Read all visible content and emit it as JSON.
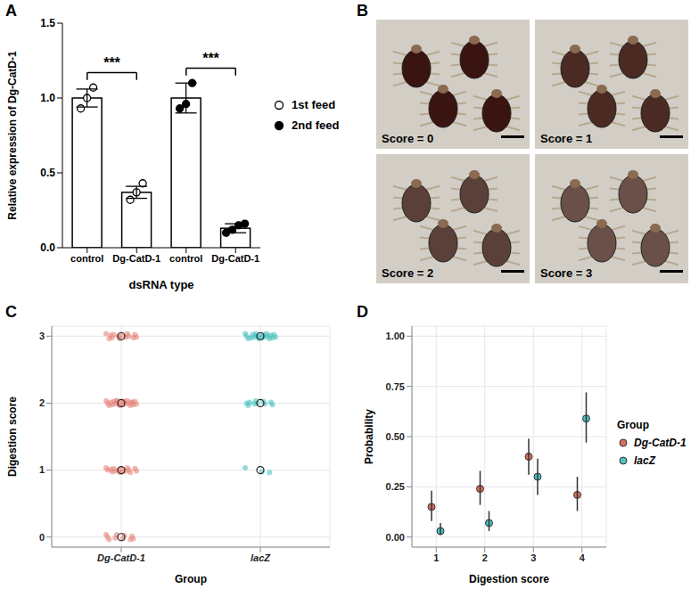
{
  "chart_data": [
    {
      "panel": "A",
      "type": "bar",
      "categories": [
        "control",
        "Dg-CatD-1",
        "control",
        "Dg-CatD-1"
      ],
      "series": [
        {
          "name": "1st feed",
          "marker": "hollow",
          "values": [
            1.0,
            0.37,
            null,
            null
          ],
          "errors": [
            0.06,
            0.04,
            null,
            null
          ],
          "points": [
            [
              0.93,
              1.0,
              1.07
            ],
            [
              0.32,
              0.37,
              0.43
            ],
            null,
            null
          ]
        },
        {
          "name": "2nd feed",
          "marker": "filled",
          "values": [
            null,
            null,
            1.0,
            0.13
          ],
          "errors": [
            null,
            null,
            0.1,
            0.03
          ],
          "points": [
            null,
            null,
            [
              0.93,
              0.96,
              1.1
            ],
            [
              0.1,
              0.12,
              0.15,
              0.16
            ]
          ]
        }
      ],
      "x_label": "dsRNA type",
      "y_label": "Relative expression of Dg-CatD-1",
      "ylim": [
        0,
        1.5
      ],
      "yticks": [
        {
          "value": 0,
          "label": "0.0"
        },
        0.5,
        {
          "value": 1,
          "label": "1.0"
        },
        1.5
      ],
      "significance": [
        {
          "between": [
            0,
            1
          ],
          "label": "***"
        },
        {
          "between": [
            2,
            3
          ],
          "label": "***"
        }
      ],
      "legend": "right"
    },
    {
      "panel": "B",
      "type": "image",
      "labels": [
        "Score = 0",
        "Score = 1",
        "Score = 2",
        "Score = 3"
      ]
    },
    {
      "panel": "C",
      "type": "scatter",
      "categories": [
        "Dg-CatD-1",
        "lacZ"
      ],
      "x_label": "Group",
      "y_label": "Digestion score",
      "ylim": [
        -0.15,
        3.15
      ],
      "yticks": [
        0,
        1,
        2,
        3
      ],
      "grid": true,
      "series": [
        {
          "color": "#E8877D",
          "scores": [
            0,
            1,
            2,
            3
          ],
          "counts": [
            10,
            16,
            24,
            14
          ]
        },
        {
          "color": "#4CC3C0",
          "scores": [
            0,
            1,
            2,
            3
          ],
          "counts": [
            0,
            3,
            10,
            20
          ]
        }
      ]
    },
    {
      "panel": "D",
      "type": "scatter",
      "categories": [
        1,
        2,
        3,
        4
      ],
      "x_label": "Digestion score",
      "y_label": "Probability",
      "ylim": [
        -0.05,
        1.05
      ],
      "yticks": [
        {
          "value": 0,
          "label": "0.00"
        },
        0.25,
        {
          "value": 0.5,
          "label": "0.50"
        },
        0.75,
        {
          "value": 1,
          "label": "1.00"
        }
      ],
      "grid": true,
      "legend": "right",
      "legend_title": "Group",
      "series": [
        {
          "name": "Dg-CatD-1",
          "color": "#D8705E",
          "values": [
            0.15,
            0.24,
            0.4,
            0.21
          ],
          "lower": [
            0.08,
            0.16,
            0.31,
            0.13
          ],
          "upper": [
            0.23,
            0.33,
            0.49,
            0.3
          ]
        },
        {
          "name": "lacZ",
          "color": "#4CC3C0",
          "values": [
            0.03,
            0.07,
            0.3,
            0.59
          ],
          "lower": [
            0.01,
            0.03,
            0.21,
            0.47
          ],
          "upper": [
            0.07,
            0.13,
            0.39,
            0.72
          ]
        }
      ]
    }
  ]
}
